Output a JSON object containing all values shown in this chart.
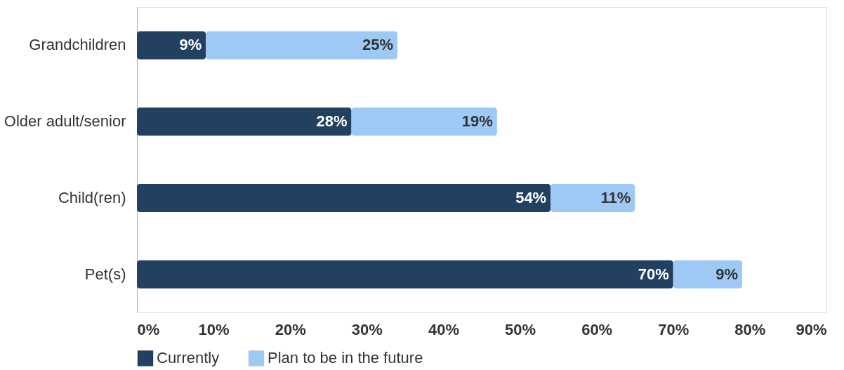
{
  "chart_data": {
    "type": "bar",
    "orientation": "horizontal",
    "stacked": true,
    "categories": [
      "Grandchildren",
      "Older adult/senior",
      "Child(ren)",
      "Pet(s)"
    ],
    "series": [
      {
        "name": "Currently",
        "color": "#22405f",
        "values": [
          9,
          28,
          54,
          70
        ],
        "value_labels": [
          "9%",
          "28%",
          "54%",
          "70%"
        ]
      },
      {
        "name": "Plan to be in the future",
        "color": "#9ec9f5",
        "values": [
          25,
          19,
          11,
          9
        ],
        "value_labels": [
          "25%",
          "19%",
          "11%",
          "9%"
        ]
      }
    ],
    "xlim": [
      0,
      90
    ],
    "xticks": [
      {
        "value": 0,
        "label": "0%"
      },
      {
        "value": 10,
        "label": "10%"
      },
      {
        "value": 20,
        "label": "20%"
      },
      {
        "value": 30,
        "label": "30%"
      },
      {
        "value": 40,
        "label": "40%"
      },
      {
        "value": 50,
        "label": "50%"
      },
      {
        "value": 60,
        "label": "60%"
      },
      {
        "value": 70,
        "label": "70%"
      },
      {
        "value": 80,
        "label": "80%"
      },
      {
        "value": 90,
        "label": "90%"
      }
    ],
    "legend": "bottom"
  }
}
